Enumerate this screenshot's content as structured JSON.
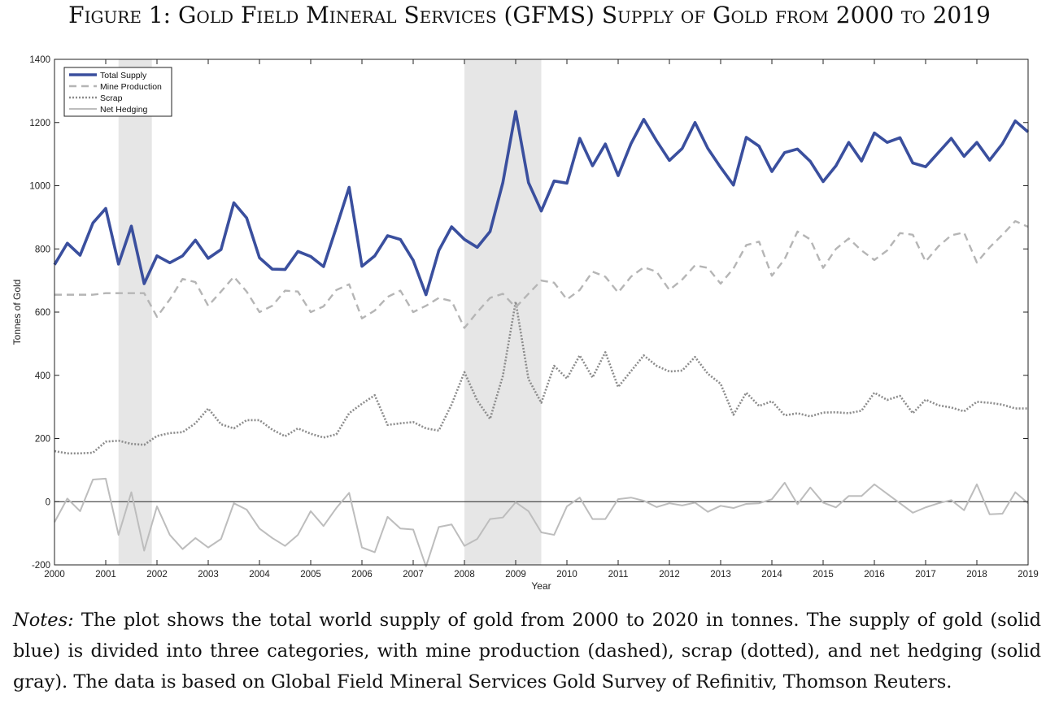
{
  "figure": {
    "title": "Figure 1: Gold Field Mineral Services (GFMS) Supply of Gold from 2000 to 2019"
  },
  "notes": {
    "lead": "Notes:",
    "text": "The plot shows the total world supply of gold from 2000 to 2020 in tonnes. The supply of gold (solid blue) is divided into three categories, with mine production (dashed), scrap (dotted), and net hedging (solid gray).  The data is based on Global Field Mineral Services Gold Survey of Refinitiv, Thomson Reuters."
  },
  "chart_data": {
    "type": "line",
    "title": "",
    "xlabel": "Year",
    "ylabel": "Tonnes of Gold",
    "xlim": [
      2000,
      2019
    ],
    "ylim": [
      -200,
      1400
    ],
    "x_ticks": [
      2000,
      2001,
      2002,
      2003,
      2004,
      2005,
      2006,
      2007,
      2008,
      2009,
      2010,
      2011,
      2012,
      2013,
      2014,
      2015,
      2016,
      2017,
      2018,
      2019
    ],
    "y_ticks": [
      -200,
      0,
      200,
      400,
      600,
      800,
      1000,
      1200,
      1400
    ],
    "grid": false,
    "zero_line": true,
    "legend_position": "top-left",
    "shaded_periods": [
      [
        2001.25,
        2001.9
      ],
      [
        2008.0,
        2009.5
      ]
    ],
    "colors": {
      "total_supply": "#3a4f9e",
      "mine_production": "#b5b5b5",
      "scrap": "#8c8c8c",
      "net_hedging": "#bdbdbd",
      "shading": "#e6e6e6"
    },
    "x": [
      2000.0,
      2000.25,
      2000.5,
      2000.75,
      2001.0,
      2001.25,
      2001.5,
      2001.75,
      2002.0,
      2002.25,
      2002.5,
      2002.75,
      2003.0,
      2003.25,
      2003.5,
      2003.75,
      2004.0,
      2004.25,
      2004.5,
      2004.75,
      2005.0,
      2005.25,
      2005.5,
      2005.75,
      2006.0,
      2006.25,
      2006.5,
      2006.75,
      2007.0,
      2007.25,
      2007.5,
      2007.75,
      2008.0,
      2008.25,
      2008.5,
      2008.75,
      2009.0,
      2009.25,
      2009.5,
      2009.75,
      2010.0,
      2010.25,
      2010.5,
      2010.75,
      2011.0,
      2011.25,
      2011.5,
      2011.75,
      2012.0,
      2012.25,
      2012.5,
      2012.75,
      2013.0,
      2013.25,
      2013.5,
      2013.75,
      2014.0,
      2014.25,
      2014.5,
      2014.75,
      2015.0,
      2015.25,
      2015.5,
      2015.75,
      2016.0,
      2016.25,
      2016.5,
      2016.75,
      2017.0,
      2017.25,
      2017.5,
      2017.75,
      2018.0,
      2018.25,
      2018.5,
      2018.75,
      2019.0
    ],
    "series": [
      {
        "name": "Total Supply",
        "key": "total_supply",
        "style": "solid",
        "values": [
          750,
          818,
          780,
          882,
          928,
          752,
          872,
          690,
          778,
          756,
          778,
          828,
          770,
          798,
          946,
          898,
          772,
          736,
          735,
          792,
          776,
          744,
          868,
          995,
          745,
          778,
          842,
          830,
          764,
          655,
          795,
          870,
          830,
          805,
          855,
          1010,
          1235,
          1010,
          920,
          1015,
          1008,
          1150,
          1063,
          1132,
          1032,
          1133,
          1210,
          1142,
          1080,
          1118,
          1200,
          1118,
          1058,
          1002,
          1153,
          1125,
          1045,
          1105,
          1116,
          1077,
          1013,
          1063,
          1137,
          1078,
          1167,
          1137,
          1152,
          1072,
          1060,
          1105,
          1150,
          1093,
          1137,
          1081,
          1133,
          1205,
          1170
        ]
      },
      {
        "name": "Mine Production",
        "key": "mine_production",
        "style": "dashed",
        "values": [
          655,
          655,
          655,
          655,
          660,
          660,
          660,
          660,
          585,
          640,
          705,
          695,
          620,
          665,
          712,
          665,
          600,
          620,
          668,
          665,
          600,
          618,
          670,
          688,
          580,
          605,
          648,
          668,
          600,
          620,
          645,
          635,
          550,
          600,
          645,
          658,
          615,
          658,
          700,
          693,
          640,
          670,
          728,
          712,
          662,
          712,
          742,
          728,
          670,
          703,
          748,
          740,
          690,
          738,
          812,
          823,
          715,
          768,
          855,
          830,
          740,
          800,
          833,
          795,
          765,
          795,
          850,
          845,
          760,
          808,
          843,
          852,
          757,
          805,
          845,
          888,
          870
        ]
      },
      {
        "name": "Scrap",
        "key": "scrap",
        "style": "dotted",
        "values": [
          160,
          153,
          153,
          155,
          190,
          193,
          183,
          180,
          208,
          217,
          220,
          248,
          295,
          245,
          232,
          258,
          258,
          228,
          207,
          232,
          215,
          203,
          213,
          280,
          310,
          337,
          243,
          248,
          252,
          232,
          225,
          308,
          410,
          320,
          262,
          398,
          633,
          388,
          313,
          430,
          390,
          463,
          393,
          473,
          363,
          413,
          463,
          430,
          412,
          415,
          458,
          405,
          373,
          275,
          345,
          303,
          318,
          273,
          280,
          270,
          282,
          283,
          280,
          288,
          345,
          322,
          335,
          280,
          323,
          305,
          298,
          286,
          316,
          313,
          307,
          295,
          295
        ]
      },
      {
        "name": "Net Hedging",
        "key": "net_hedging",
        "style": "solid",
        "values": [
          -65,
          10,
          -30,
          70,
          73,
          -105,
          30,
          -155,
          -15,
          -105,
          -150,
          -115,
          -145,
          -118,
          -5,
          -25,
          -85,
          -115,
          -140,
          -105,
          -30,
          -77,
          -20,
          28,
          -145,
          -160,
          -48,
          -85,
          -88,
          -205,
          -80,
          -72,
          -140,
          -118,
          -55,
          -50,
          -2,
          -30,
          -97,
          -105,
          -15,
          13,
          -55,
          -55,
          8,
          13,
          3,
          -17,
          -5,
          -12,
          -3,
          -32,
          -13,
          -20,
          -7,
          -5,
          8,
          60,
          -8,
          45,
          -3,
          -18,
          18,
          18,
          55,
          25,
          -5,
          -35,
          -18,
          -5,
          5,
          -27,
          55,
          -40,
          -38,
          30,
          -5
        ]
      }
    ]
  }
}
